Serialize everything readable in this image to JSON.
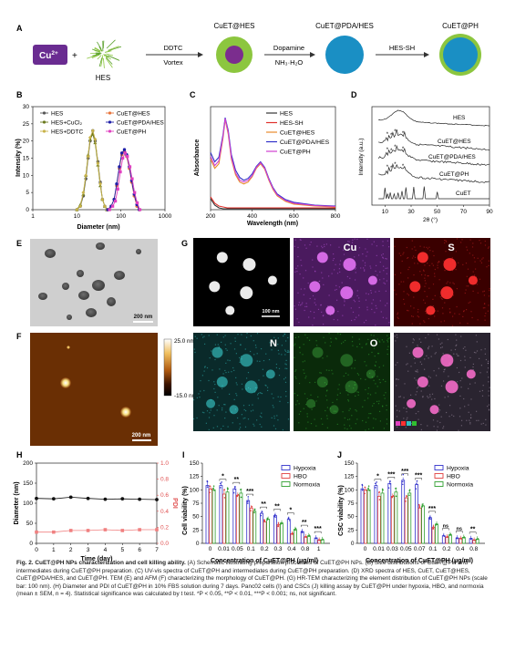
{
  "panelA": {
    "label": "A",
    "cu_label": "Cu",
    "cu_sup": "2+",
    "plus": "+",
    "hes_label": "HES",
    "step1_top": "DDTC",
    "step1_bottom": "Vortex",
    "prod1": "CuET@HES",
    "step2_top": "Dopamine",
    "step2_bottom": "NH₃·H₂O",
    "prod2": "CuET@PDA/HES",
    "step3_top": "HES-SH",
    "prod3": "CuET@PH",
    "colors": {
      "cu_box": "#6a2c91",
      "hes": "#5aa02c",
      "core": "#7b2d8e",
      "shell_green": "#8cc63f",
      "pda": "#1a8fc4",
      "arrow": "#333333"
    }
  },
  "panelB": {
    "label": "B",
    "chart_data": {
      "type": "line",
      "xlabel": "Diameter (nm)",
      "ylabel": "Intensity (%)",
      "xscale": "log",
      "xlim": [
        1,
        1000
      ],
      "ylim": [
        0,
        30
      ],
      "xticks": [
        "1",
        "10",
        "100",
        "1000"
      ],
      "yticks": [
        0,
        5,
        10,
        15,
        20,
        25,
        30
      ],
      "series": [
        {
          "name": "HES",
          "color": "#555555",
          "marker": "circle",
          "x": [
            10,
            12,
            14,
            16,
            18,
            20,
            23,
            26,
            30,
            34,
            38,
            43,
            48
          ],
          "y": [
            0,
            1,
            4,
            9,
            15,
            20,
            23,
            20,
            14,
            8,
            3,
            1,
            0
          ]
        },
        {
          "name": "HES+CuCl₂",
          "color": "#6b7a1e",
          "marker": "triangle",
          "x": [
            10,
            12,
            14,
            16,
            18,
            20,
            23,
            26,
            30,
            34,
            38,
            43,
            48
          ],
          "y": [
            0,
            1.5,
            4.5,
            10,
            16,
            20.5,
            22,
            19.5,
            13,
            7,
            3,
            1,
            0
          ]
        },
        {
          "name": "HES+DDTC",
          "color": "#c8b34a",
          "marker": "diamond",
          "x": [
            10,
            12,
            14,
            16,
            18,
            20,
            23,
            26,
            30,
            34,
            38,
            43,
            48
          ],
          "y": [
            0,
            1,
            5,
            10,
            15.5,
            21,
            23,
            20.5,
            13.5,
            7.5,
            3,
            1,
            0
          ]
        },
        {
          "name": "CuET@HES",
          "color": "#e8733a",
          "marker": "circle",
          "x": [
            50,
            60,
            70,
            80,
            92,
            105,
            120,
            135,
            155,
            175,
            200,
            230,
            260
          ],
          "y": [
            0,
            1,
            3,
            7,
            12,
            16,
            17,
            15.5,
            12,
            8,
            4,
            1,
            0
          ]
        },
        {
          "name": "CuET@PDA/HES",
          "color": "#1f1fa8",
          "marker": "circle",
          "x": [
            50,
            60,
            70,
            80,
            92,
            105,
            120,
            135,
            155,
            175,
            200,
            230,
            260
          ],
          "y": [
            0,
            1,
            3,
            7.5,
            12.5,
            16.5,
            17.5,
            16,
            12.5,
            8.5,
            4.5,
            1.5,
            0
          ]
        },
        {
          "name": "CuET@PH",
          "color": "#e040c0",
          "marker": "square",
          "x": [
            55,
            65,
            75,
            85,
            97,
            110,
            125,
            140,
            160,
            180,
            205,
            235,
            270
          ],
          "y": [
            0,
            1,
            2.5,
            6,
            11,
            15,
            16.5,
            15.5,
            12.5,
            9,
            5,
            2,
            0
          ]
        }
      ]
    }
  },
  "panelC": {
    "label": "C",
    "chart_data": {
      "type": "line",
      "xlabel": "Wavelength (nm)",
      "ylabel": "Absorbance",
      "xlim": [
        200,
        800
      ],
      "xticks": [
        200,
        400,
        600,
        800
      ],
      "legend_position": "top-right",
      "series": [
        {
          "name": "HES",
          "color": "#333333",
          "x": [
            200,
            220,
            240,
            260,
            280,
            300,
            400,
            600,
            800
          ],
          "y": [
            0.12,
            0.05,
            0.02,
            0.01,
            0.01,
            0.01,
            0.01,
            0.01,
            0.01
          ]
        },
        {
          "name": "HES-SH",
          "color": "#e0302a",
          "x": [
            200,
            220,
            240,
            260,
            280,
            300,
            400,
            600,
            800
          ],
          "y": [
            0.14,
            0.07,
            0.04,
            0.03,
            0.02,
            0.02,
            0.02,
            0.02,
            0.02
          ]
        },
        {
          "name": "CuET@HES",
          "color": "#e88a2c",
          "x": [
            200,
            220,
            240,
            260,
            270,
            285,
            300,
            320,
            340,
            360,
            380,
            400,
            420,
            440,
            460,
            480,
            500,
            520,
            560,
            600,
            700,
            800
          ],
          "y": [
            0.55,
            0.45,
            0.5,
            0.78,
            0.98,
            0.82,
            0.55,
            0.38,
            0.3,
            0.28,
            0.3,
            0.36,
            0.45,
            0.5,
            0.44,
            0.32,
            0.22,
            0.15,
            0.09,
            0.06,
            0.04,
            0.03
          ]
        },
        {
          "name": "CuET@PDA/HES",
          "color": "#3030c8",
          "x": [
            200,
            220,
            240,
            260,
            270,
            285,
            300,
            320,
            340,
            360,
            380,
            400,
            420,
            440,
            460,
            480,
            500,
            520,
            560,
            600,
            700,
            800
          ],
          "y": [
            0.62,
            0.52,
            0.57,
            0.82,
            1.0,
            0.86,
            0.6,
            0.43,
            0.35,
            0.32,
            0.34,
            0.39,
            0.47,
            0.52,
            0.46,
            0.34,
            0.24,
            0.17,
            0.11,
            0.08,
            0.05,
            0.04
          ]
        },
        {
          "name": "CuET@PH",
          "color": "#d040d0",
          "x": [
            200,
            220,
            240,
            260,
            270,
            285,
            300,
            320,
            340,
            360,
            380,
            400,
            420,
            440,
            460,
            480,
            500,
            520,
            560,
            600,
            700,
            800
          ],
          "y": [
            0.58,
            0.48,
            0.53,
            0.8,
            0.99,
            0.84,
            0.57,
            0.4,
            0.32,
            0.3,
            0.32,
            0.37,
            0.46,
            0.51,
            0.45,
            0.33,
            0.23,
            0.16,
            0.1,
            0.07,
            0.045,
            0.035
          ]
        }
      ]
    }
  },
  "panelD": {
    "label": "D",
    "chart_data": {
      "type": "line",
      "xlabel": "2θ (°)",
      "ylabel": "Intensity (a.u.)",
      "xlim": [
        0,
        90
      ],
      "xticks": [
        10,
        30,
        50,
        70,
        90
      ],
      "series_labels": [
        "HES",
        "CuET@HES",
        "CuET@PDA/HES",
        "CuET@PH",
        "CuET"
      ],
      "marker_symbol": "*"
    }
  },
  "panelE": {
    "label": "E",
    "scalebar": "200 nm"
  },
  "panelF": {
    "label": "F",
    "scalebar": "200 nm",
    "cbar_max": "25.0 nm",
    "cbar_min": "-15.0 nm"
  },
  "panelG": {
    "label": "G",
    "scalebar": "100 nm",
    "channels": [
      "Cu",
      "S",
      "N",
      "O"
    ]
  },
  "panelH": {
    "label": "H",
    "chart_data": {
      "type": "scatter",
      "xlabel": "Time (day)",
      "ylabel": "Diameter (nm)",
      "ylabel_right": "PDI",
      "xlim": [
        0,
        7
      ],
      "ylim": [
        0,
        200
      ],
      "ylim_right": [
        0,
        1.0
      ],
      "xticks": [
        0,
        1,
        2,
        3,
        4,
        5,
        6,
        7
      ],
      "yticks": [
        0,
        50,
        100,
        150,
        200
      ],
      "yticks_right": [
        "0.0",
        "0.2",
        "0.4",
        "0.6",
        "0.8",
        "1.0"
      ],
      "series": [
        {
          "name": "Diameter",
          "axis": "left",
          "color": "#111111",
          "x": [
            0,
            1,
            2,
            3,
            4,
            5,
            6,
            7
          ],
          "y": [
            112,
            111,
            115,
            112,
            110,
            111,
            110,
            109
          ]
        },
        {
          "name": "PDI",
          "axis": "right",
          "color": "#f08080",
          "x": [
            0,
            1,
            2,
            3,
            4,
            5,
            6,
            7
          ],
          "y": [
            0.14,
            0.14,
            0.16,
            0.16,
            0.17,
            0.16,
            0.17,
            0.17
          ]
        }
      ]
    }
  },
  "panelI": {
    "label": "I",
    "chart_data": {
      "type": "bar",
      "xlabel": "Concentration of CuET@PH (μg/ml)",
      "ylabel": "Cell viability (%)",
      "ylim": [
        0,
        150
      ],
      "yticks": [
        0,
        25,
        50,
        75,
        100,
        125,
        150
      ],
      "categories": [
        "0",
        "0.01",
        "0.05",
        "0.1",
        "0.2",
        "0.3",
        "0.4",
        "0.8",
        "1"
      ],
      "series": [
        {
          "name": "Hypoxia",
          "color": "#3333cc",
          "values": [
            108,
            108,
            102,
            80,
            56,
            52,
            45,
            22,
            10
          ]
        },
        {
          "name": "HBO",
          "color": "#e04040",
          "values": [
            102,
            92,
            90,
            66,
            40,
            35,
            18,
            12,
            6
          ]
        },
        {
          "name": "Normoxia",
          "color": "#30a030",
          "values": [
            100,
            96,
            94,
            60,
            45,
            38,
            26,
            14,
            7
          ]
        }
      ],
      "significance": [
        "",
        "*",
        "**",
        "***",
        "**",
        "**",
        "*",
        "**",
        "***"
      ]
    }
  },
  "panelJ": {
    "label": "J",
    "chart_data": {
      "type": "bar",
      "xlabel": "Concentration of CuET@PH (μg/ml)",
      "ylabel": "CSC viability (%)",
      "ylim": [
        0,
        150
      ],
      "yticks": [
        0,
        25,
        50,
        75,
        100,
        125,
        150
      ],
      "categories": [
        "0",
        "0.01",
        "0.03",
        "0.05",
        "0.07",
        "0.1",
        "0.2",
        "0.4",
        "0.8"
      ],
      "series": [
        {
          "name": "Hypoxia",
          "color": "#3333cc",
          "values": [
            102,
            108,
            112,
            118,
            110,
            48,
            14,
            10,
            9
          ]
        },
        {
          "name": "HBO",
          "color": "#e04040",
          "values": [
            100,
            88,
            88,
            85,
            66,
            30,
            12,
            9,
            6
          ]
        },
        {
          "name": "Normoxia",
          "color": "#30a030",
          "values": [
            100,
            94,
            96,
            94,
            70,
            36,
            16,
            11,
            8
          ]
        }
      ],
      "significance": [
        "",
        "*",
        "***",
        "***",
        "***",
        "***",
        "ns",
        "ns",
        "**"
      ]
    }
  },
  "caption": {
    "title": "Fig. 2. CuET@PH NPs characterization and cell killing ability.",
    "body": " (A) Schematic illustrating preparation processes of CuET@PH NPs. (B) Size distributions of CuET@PH and intermediates during CuET@PH preparation. (C) UV-vis spectra of CuET@PH and intermediates during CuET@PH preparation. (D) XRD spectra of HES, CuET, CuET@HES, CuET@PDA/HES, and CuET@PH. TEM (E) and AFM (F) characterizing the morphology of CuET@PH. (G) HR-TEM characterizing the element distribution of CuET@PH NPs (scale bar: 100 nm). (H) Diameter and PDI of CuET@PH in 10% FBS solution during 7 days. Panc02 cells (I) and CSCs (J) killing assay by CuET@PH under hypoxia, HBO, and normoxia (mean ± SEM, n = 4). Statistical significance was calculated by t test. *P < 0.05, **P < 0.01, ***P < 0.001; ns, not significant."
  }
}
